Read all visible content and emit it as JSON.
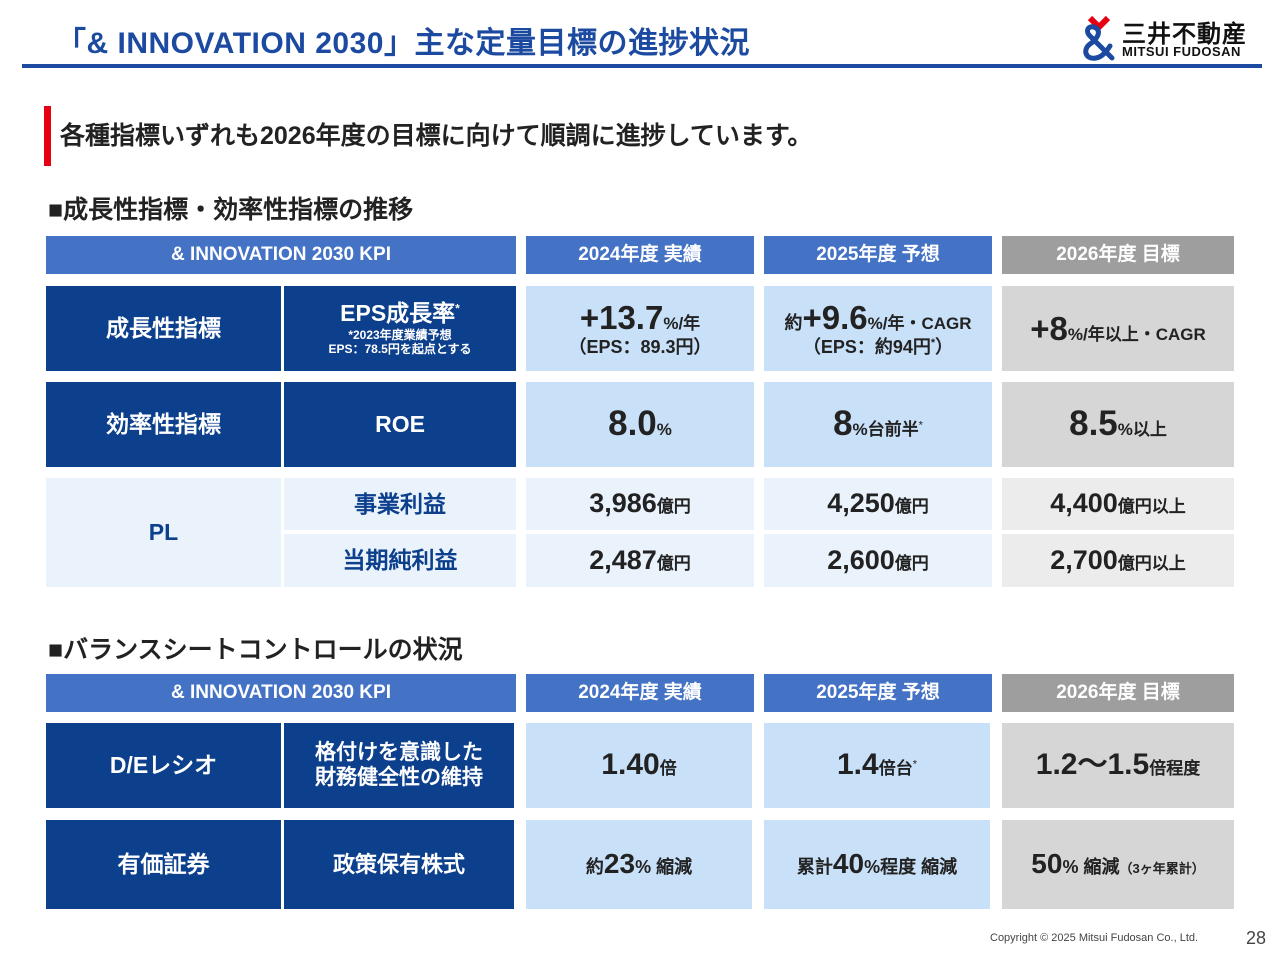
{
  "header": {
    "title": "「& INNOVATION 2030」主な定量目標の進捗状況",
    "logo_jp": "三井不動産",
    "logo_en": "MITSUI FUDOSAN"
  },
  "lead": "各種指標いずれも2026年度の目標に向けて順調に進捗しています。",
  "section1": {
    "heading": "■成長性指標・効率性指標の推移",
    "headers": {
      "kpi": "& INNOVATION 2030 KPI",
      "fy2024": "2024年度 実績",
      "fy2025": "2025年度 予想",
      "fy2026": "2026年度 目標"
    },
    "growth": {
      "category": "成長性指標",
      "metric": "EPS成長率",
      "metric_sup": "*",
      "note1": "*2023年度業績予想",
      "note2": "EPS：78.5円を起点とする",
      "v2024_num": "+13.7",
      "v2024_unit": "%/年",
      "v2024_sub": "（EPS：89.3円）",
      "v2025_pre": "約",
      "v2025_num": "+9.6",
      "v2025_unit": "%/年・CAGR",
      "v2025_sub": "（EPS：約94円",
      "v2025_sub_sup": "*",
      "v2025_sub_end": "）",
      "v2026_num": "+8",
      "v2026_unit": "%/年以上・CAGR"
    },
    "efficiency": {
      "category": "効率性指標",
      "metric": "ROE",
      "v2024_num": "8.0",
      "v2024_unit": "%",
      "v2025_num": "8",
      "v2025_unit": "%台前半",
      "v2025_sup": "*",
      "v2026_num": "8.5",
      "v2026_unit": "%以上"
    },
    "pl": {
      "category": "PL",
      "row1_metric": "事業利益",
      "row1_2024_num": "3,986",
      "row1_2024_unit": "億円",
      "row1_2025_num": "4,250",
      "row1_2025_unit": "億円",
      "row1_2026_num": "4,400",
      "row1_2026_unit": "億円以上",
      "row2_metric": "当期純利益",
      "row2_2024_num": "2,487",
      "row2_2024_unit": "億円",
      "row2_2025_num": "2,600",
      "row2_2025_unit": "億円",
      "row2_2026_num": "2,700",
      "row2_2026_unit": "億円以上"
    }
  },
  "section2": {
    "heading": "■バランスシートコントロールの状況",
    "headers": {
      "kpi": "& INNOVATION 2030 KPI",
      "fy2024": "2024年度 実績",
      "fy2025": "2025年度 予想",
      "fy2026": "2026年度 目標"
    },
    "de": {
      "category": "D/Eレシオ",
      "metric1": "格付けを意識した",
      "metric2": "財務健全性の維持",
      "v2024_num": "1.40",
      "v2024_unit": "倍",
      "v2025_num": "1.4",
      "v2025_unit": "倍台",
      "v2025_sup": "*",
      "v2026_num": "1.2～1.5",
      "v2026_unit": "倍程度"
    },
    "securities": {
      "category": "有価証券",
      "metric": "政策保有株式",
      "v2024_pre": "約",
      "v2024_num": "23",
      "v2024_unit": "% 縮減",
      "v2025_pre": "累計",
      "v2025_num": "40",
      "v2025_unit": "%程度 縮減",
      "v2026_num": "50",
      "v2026_unit": "% 縮減",
      "v2026_note": "（3ヶ年累計）"
    }
  },
  "footer": {
    "copyright": "Copyright © 2025 Mitsui Fudosan Co., Ltd.",
    "page": "28"
  },
  "colors": {
    "title_blue": "#1b4aa0",
    "navy": "#0c3f8c",
    "header_blue": "#4472c4",
    "header_gray": "#9e9e9e",
    "light_blue": "#c9e0f9",
    "pale_blue": "#eaf3fc",
    "light_gray": "#d6d6d6",
    "accent_red": "#e60012"
  }
}
